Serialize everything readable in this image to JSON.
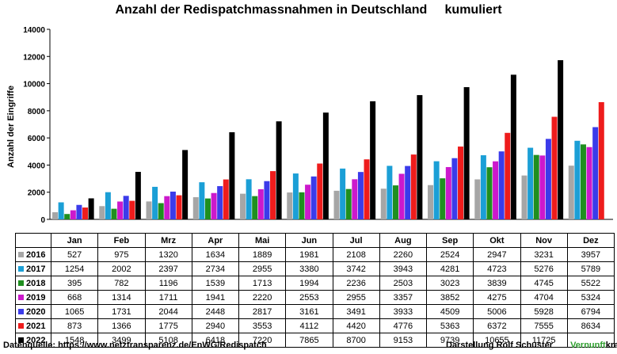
{
  "title": "Anzahl der Redispatchmassnahmen in Deutschland     kumuliert",
  "footer": {
    "source": "Datenquelle:  https://www.netztransparenz.de/EnWG/Redispatch",
    "author": "Darstellung  Rolf Schuster",
    "brand_a": "Vernunft",
    "brand_b": "kraft"
  },
  "chart_data": {
    "type": "bar",
    "title": "Anzahl der Redispatchmassnahmen in Deutschland     kumuliert",
    "ylabel": "Anzahl der Eingriffe",
    "xlabel": "",
    "ylim": [
      0,
      14000
    ],
    "yticks": [
      "0",
      "2000",
      "4000",
      "6000",
      "8000",
      "10000",
      "12000",
      "14000"
    ],
    "grid": false,
    "legend": "table-left",
    "categories": [
      "Jan",
      "Feb",
      "Mrz",
      "Apr",
      "Mai",
      "Jun",
      "Jul",
      "Aug",
      "Sep",
      "Okt",
      "Nov",
      "Dez"
    ],
    "series": [
      {
        "name": "2016",
        "color": "#a6a6a6",
        "values": [
          527,
          975,
          1320,
          1634,
          1889,
          1981,
          2108,
          2260,
          2524,
          2947,
          3231,
          3957
        ]
      },
      {
        "name": "2017",
        "color": "#1b9fd6",
        "values": [
          1254,
          2002,
          2397,
          2734,
          2955,
          3380,
          3742,
          3943,
          4281,
          4723,
          5276,
          5789
        ]
      },
      {
        "name": "2018",
        "color": "#1f8f1f",
        "values": [
          395,
          782,
          1196,
          1539,
          1713,
          1994,
          2236,
          2503,
          3023,
          3839,
          4745,
          5522
        ]
      },
      {
        "name": "2019",
        "color": "#cc19cc",
        "values": [
          668,
          1314,
          1711,
          1941,
          2220,
          2553,
          2955,
          3357,
          3852,
          4275,
          4704,
          5324
        ]
      },
      {
        "name": "2020",
        "color": "#3b3bea",
        "values": [
          1065,
          1731,
          2044,
          2448,
          2817,
          3161,
          3491,
          3933,
          4509,
          5006,
          5928,
          6794
        ]
      },
      {
        "name": "2021",
        "color": "#ee1c1c",
        "values": [
          873,
          1366,
          1775,
          2940,
          3553,
          4112,
          4420,
          4776,
          5363,
          6372,
          7555,
          8634
        ]
      },
      {
        "name": "2022",
        "color": "#000000",
        "values": [
          1548,
          3499,
          5108,
          6418,
          7220,
          7865,
          8700,
          9153,
          9739,
          10655,
          11725,
          null
        ]
      }
    ]
  }
}
